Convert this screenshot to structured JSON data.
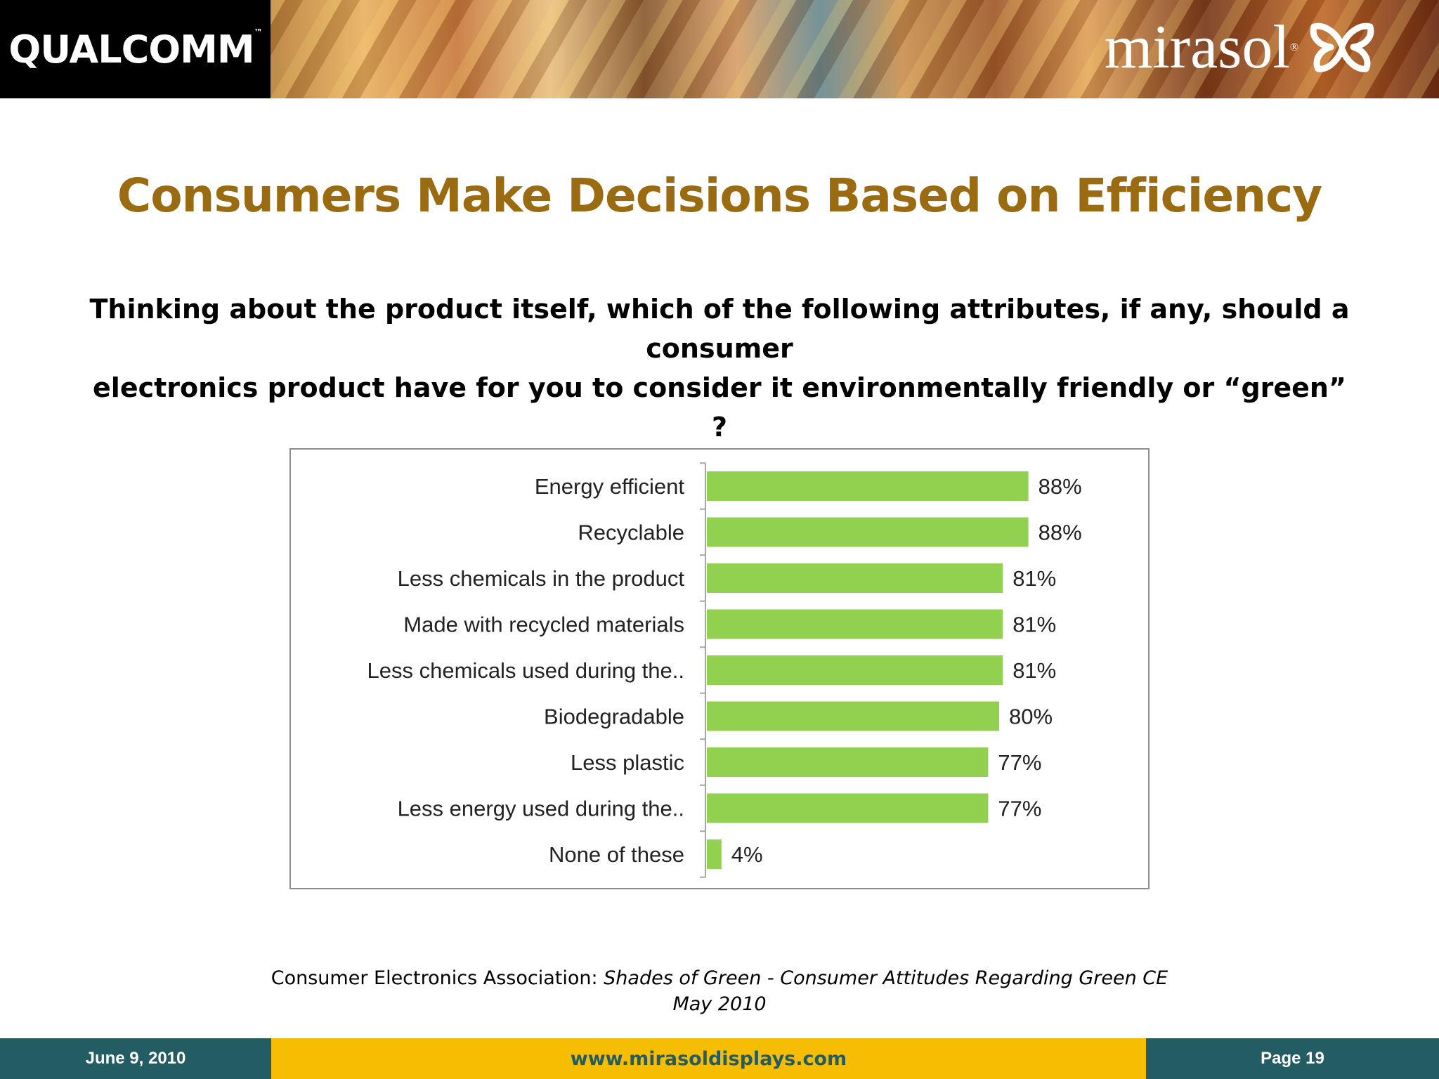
{
  "header": {
    "left_logo": "QUALCOMM",
    "right_logo": "mirasol"
  },
  "slide": {
    "title": "Consumers Make Decisions Based on Efficiency",
    "question_line1": "Thinking about the product itself, which of the following attributes, if any, should a consumer",
    "question_line2": "electronics product have for you to consider it environmentally friendly or “green” ?"
  },
  "source": {
    "prefix": "Consumer Electronics Association: ",
    "title": "Shades of Green - Consumer Attitudes Regarding Green CE",
    "date": "May 2010"
  },
  "footer": {
    "date": "June 9, 2010",
    "url": "www.mirasoldisplays.com",
    "page": "Page 19"
  },
  "colors": {
    "bar": "#92d050",
    "title": "#9b6b12",
    "footer_teal": "#245c64",
    "footer_yellow": "#f7bd00"
  },
  "chart_data": {
    "type": "bar",
    "orientation": "horizontal",
    "categories": [
      "Energy efficient",
      "Recyclable",
      "Less chemicals in the product",
      "Made with recycled materials",
      "Less chemicals used during the..",
      "Biodegradable",
      "Less plastic",
      "Less energy used during the..",
      "None of these"
    ],
    "values": [
      88,
      88,
      81,
      81,
      81,
      80,
      77,
      77,
      4
    ],
    "value_labels": [
      "88%",
      "88%",
      "81%",
      "81%",
      "81%",
      "80%",
      "77%",
      "77%",
      "4%"
    ],
    "xlim": [
      0,
      100
    ],
    "grid": false,
    "legend": false
  }
}
